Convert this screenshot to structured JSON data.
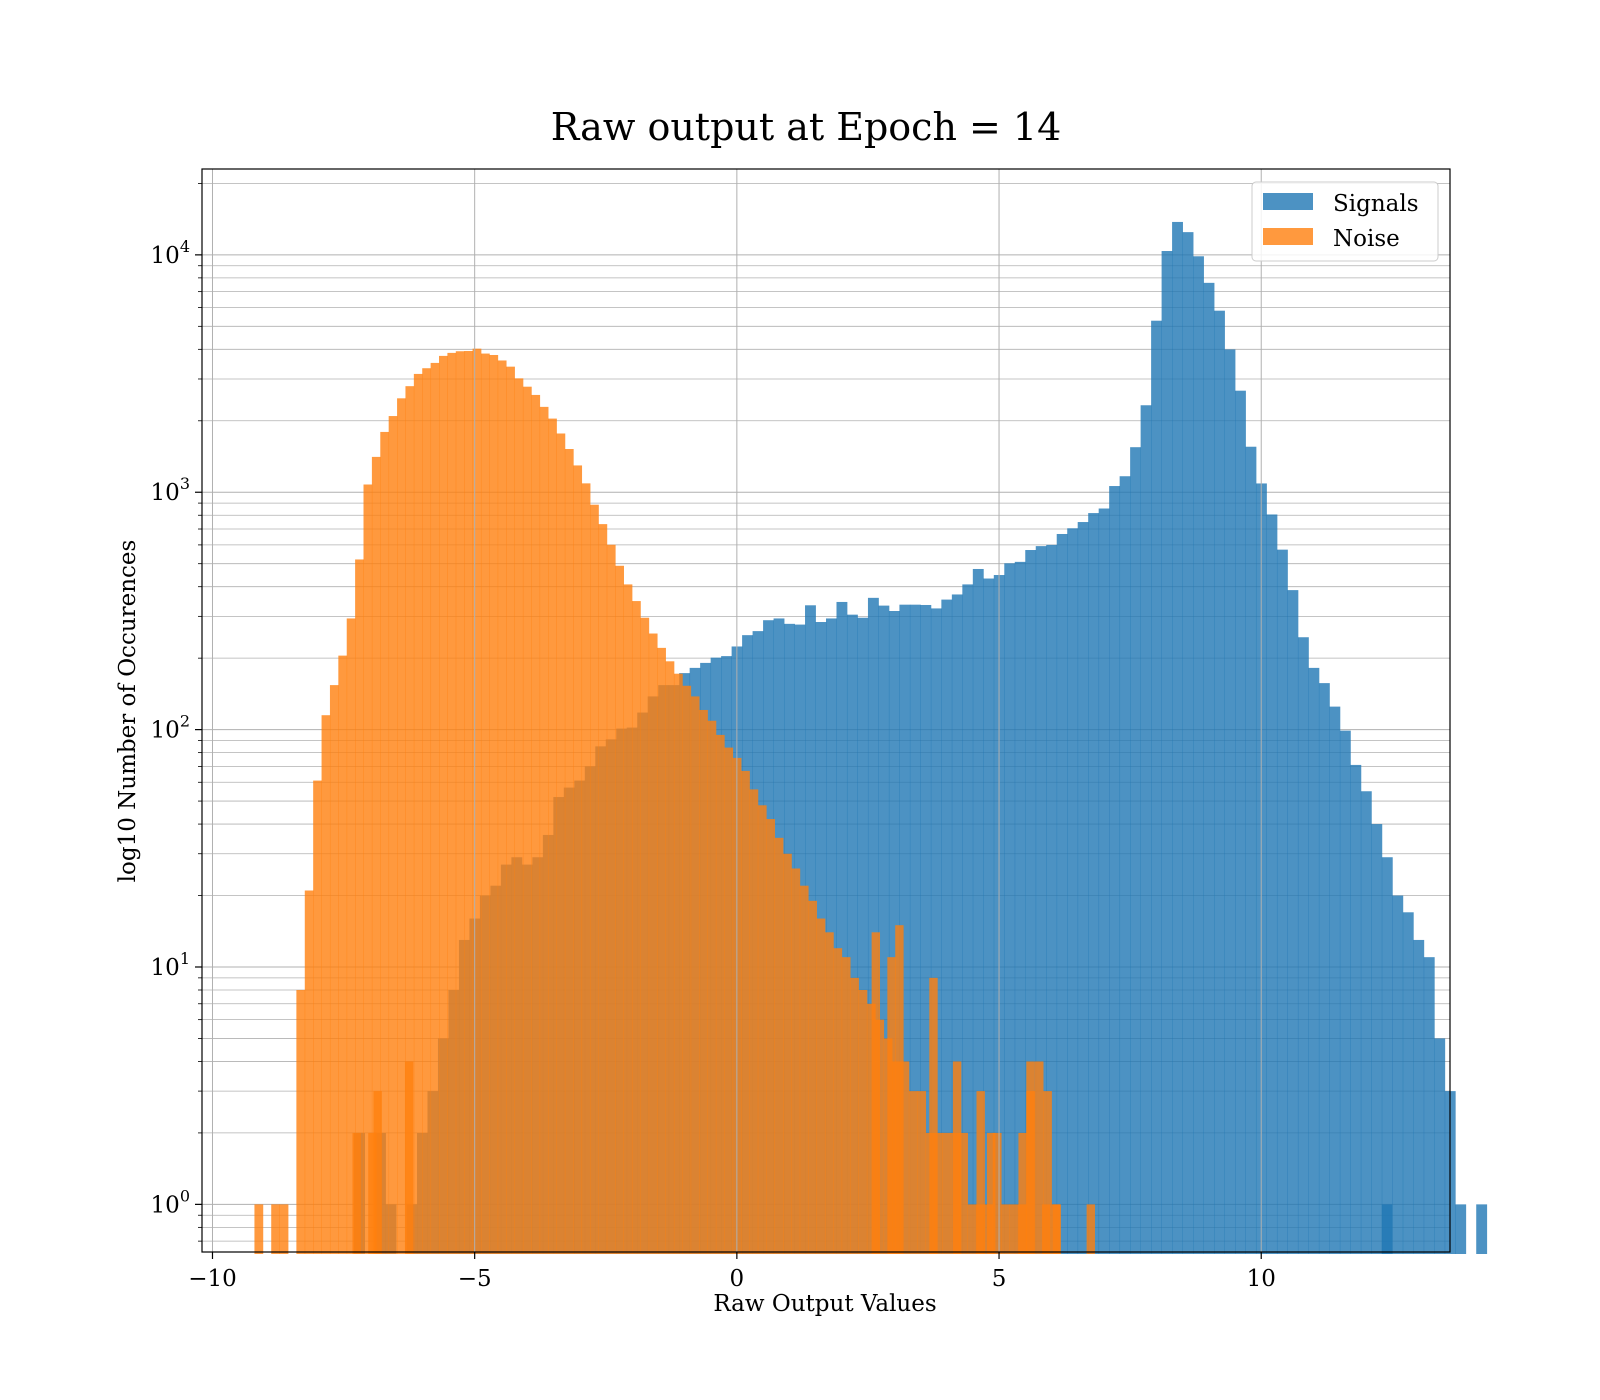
{
  "chart_data": {
    "type": "bar",
    "title": "Raw output at Epoch = 14",
    "xlabel": "Raw Output Values",
    "ylabel": "log10 Number of Occurences",
    "xlim": [
      -10.2,
      13.6
    ],
    "ylim": [
      0.63,
      23000
    ],
    "y_scale": "log",
    "grid": "on",
    "legend_position": "top-right",
    "x_ticks": [
      {
        "value": -10,
        "label": "−10"
      },
      {
        "value": -5,
        "label": "−5"
      },
      {
        "value": 0,
        "label": "0"
      },
      {
        "value": 5,
        "label": "5"
      },
      {
        "value": 10,
        "label": "10"
      }
    ],
    "y_ticks": [
      {
        "value": 1,
        "base": "10",
        "exp": "0"
      },
      {
        "value": 10,
        "base": "10",
        "exp": "1"
      },
      {
        "value": 100,
        "base": "10",
        "exp": "2"
      },
      {
        "value": 1000,
        "base": "10",
        "exp": "3"
      },
      {
        "value": 10000,
        "base": "10",
        "exp": "4"
      }
    ],
    "series": [
      {
        "name": "Signals",
        "color": "#1f77b4",
        "opacity": 0.8,
        "bin_start": -7.3,
        "bin_width": 0.2,
        "counts": [
          2,
          0,
          2,
          1,
          0,
          1,
          2,
          3,
          5,
          8,
          13,
          16,
          20,
          22,
          27,
          29,
          27,
          29,
          36,
          52,
          57,
          61,
          70,
          85,
          91,
          101,
          102,
          118,
          138,
          154,
          154,
          173,
          182,
          191,
          201,
          204,
          224,
          250,
          260,
          289,
          294,
          279,
          277,
          334,
          284,
          294,
          345,
          305,
          296,
          359,
          333,
          316,
          336,
          336,
          335,
          324,
          353,
          371,
          409,
          475,
          433,
          448,
          502,
          509,
          571,
          593,
          600,
          667,
          705,
          749,
          817,
          854,
          1062,
          1168,
          1548,
          2325,
          5280,
          10381,
          13762,
          12467,
          9864,
          7623,
          5819,
          3995,
          2678,
          1555,
          1089,
          806,
          573,
          387,
          245,
          182,
          157,
          125,
          99,
          71,
          55,
          40,
          29,
          20,
          17,
          13,
          11,
          5,
          3,
          1,
          0,
          1
        ],
        "extra_counts": [
          {
            "x": 12.4,
            "value": 1
          }
        ]
      },
      {
        "name": "Noise",
        "color": "#ff7f0e",
        "opacity": 0.8,
        "bin_start": -9.2,
        "bin_width": 0.16,
        "counts": [
          1,
          0,
          1,
          1,
          0,
          8,
          21,
          61,
          115,
          154,
          205,
          294,
          521,
          1078,
          1409,
          1795,
          2094,
          2487,
          2798,
          3151,
          3330,
          3506,
          3753,
          3864,
          3926,
          3935,
          4026,
          3839,
          3786,
          3590,
          3381,
          3018,
          2784,
          2570,
          2289,
          2043,
          1768,
          1521,
          1297,
          1090,
          886,
          734,
          601,
          490,
          409,
          348,
          296,
          254,
          221,
          194,
          172,
          153,
          138,
          121,
          109,
          95,
          84,
          76,
          67,
          56,
          48,
          42,
          35,
          30,
          26,
          22,
          19,
          16,
          14,
          12,
          11,
          9,
          8,
          7,
          6,
          5,
          4,
          4,
          3,
          3,
          2,
          2,
          2,
          2,
          2,
          1,
          1,
          1,
          2,
          1,
          1,
          1,
          3,
          4,
          3,
          1
        ],
        "spikes": [
          {
            "x": -6.25,
            "value": 4
          },
          {
            "x": -6.85,
            "value": 3
          },
          {
            "x": -7.25,
            "value": 2
          },
          {
            "x": -6.95,
            "value": 2
          },
          {
            "x": 2.95,
            "value": 11
          },
          {
            "x": 3.1,
            "value": 15
          },
          {
            "x": 2.65,
            "value": 14
          },
          {
            "x": 3.75,
            "value": 9
          },
          {
            "x": 4.2,
            "value": 4
          },
          {
            "x": 4.65,
            "value": 3
          },
          {
            "x": 4.85,
            "value": 2
          },
          {
            "x": 5.45,
            "value": 2
          },
          {
            "x": 5.6,
            "value": 4
          },
          {
            "x": 5.9,
            "value": 1
          },
          {
            "x": 6.1,
            "value": 1
          },
          {
            "x": 6.75,
            "value": 1
          }
        ]
      }
    ]
  }
}
